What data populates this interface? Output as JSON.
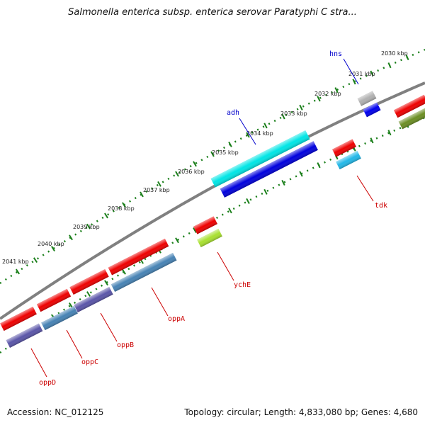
{
  "title": "Salmonella enterica subsp. enterica serovar Paratyphi C stra...",
  "footer": {
    "accession": "Accession: NC_012125",
    "topology": "Topology: circular; Length: 4,833,080 bp; Genes: 4,680"
  },
  "colors": {
    "backbone": "#808080",
    "tick_ring": "#1a7f1a",
    "label_outer": "#0000cc",
    "label_inner": "#cc0000"
  },
  "scale_labels": [
    {
      "text": "2030 kbp"
    },
    {
      "text": "2031 kbp"
    },
    {
      "text": "2032 kbp"
    },
    {
      "text": "2033 kbp"
    },
    {
      "text": "2034 kbp"
    },
    {
      "text": "2035 kbp"
    },
    {
      "text": "2036 kbp"
    },
    {
      "text": "2037 kbp"
    },
    {
      "text": "2038 kbp"
    },
    {
      "text": "2039 kbp"
    },
    {
      "text": "2040 kbp"
    },
    {
      "text": "2041 kbp"
    }
  ],
  "genes": [
    {
      "label": "hns",
      "color": "#0000cc"
    },
    {
      "label": "adh",
      "color": "#0000cc"
    },
    {
      "label": "tdk",
      "color": "#cc0000"
    },
    {
      "label": "ychE",
      "color": "#cc0000"
    },
    {
      "label": "oppA",
      "color": "#cc0000"
    },
    {
      "label": "oppB",
      "color": "#cc0000"
    },
    {
      "label": "oppC",
      "color": "#cc0000"
    },
    {
      "label": "oppD",
      "color": "#cc0000"
    }
  ]
}
